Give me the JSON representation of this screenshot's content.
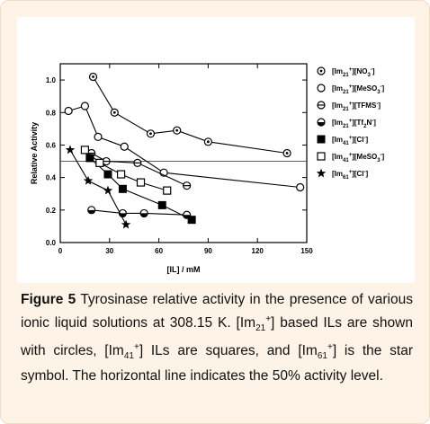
{
  "caption": {
    "label": "Figure 5",
    "text": "Tyrosinase relative activity in the presence of various ionic liquid solutions at 308.15 K. [Im21+] based ILs are shown with circles, [Im41+] ILs are squares, and [Im61+] is the star symbol. The horizontal line indicates the 50% activity level.",
    "parts": [
      {
        "t": " Tyrosinase relative activity in the presence of various ionic liquid solutions at 308.15 K. [Im"
      },
      {
        "t": "21",
        "sub": true
      },
      {
        "t": "+",
        "sup": true
      },
      {
        "t": "] based ILs are shown with circles, [Im"
      },
      {
        "t": "41",
        "sub": true
      },
      {
        "t": "+",
        "sup": true
      },
      {
        "t": "] ILs are squares, and [Im"
      },
      {
        "t": "61",
        "sub": true
      },
      {
        "t": "+",
        "sup": true
      },
      {
        "t": "] is the star symbol. The horizontal line indicates the 50% activity level."
      }
    ]
  },
  "chart_data": {
    "type": "line",
    "xlabel": "[IL] / mM",
    "ylabel": "Relative Activity",
    "xlim": [
      0,
      150
    ],
    "ylim": [
      0.0,
      1.1
    ],
    "xticks": [
      0,
      30,
      60,
      90,
      120,
      150
    ],
    "yticks": [
      0.0,
      0.2,
      0.4,
      0.6,
      0.8,
      1.0
    ],
    "ytick_labels": [
      "0.0",
      "0.2",
      "0.4",
      "0.6",
      "0.8",
      "1.0"
    ],
    "reference_line": {
      "y": 0.5,
      "style": "horizontal"
    },
    "grid": false,
    "legend_position": "right",
    "series": [
      {
        "name": "[Im21+][NO3-]",
        "label_parts": [
          [
            "[Im",
            ""
          ],
          [
            "21",
            "sub"
          ],
          [
            "+",
            "sup"
          ],
          [
            "][NO",
            ""
          ],
          [
            "3",
            "sub"
          ],
          [
            "-",
            "sup"
          ],
          [
            "]",
            ""
          ]
        ],
        "marker": "circle-dot",
        "x": [
          20,
          33,
          55,
          71,
          90,
          138
        ],
        "y": [
          1.02,
          0.8,
          0.67,
          0.69,
          0.62,
          0.55
        ]
      },
      {
        "name": "[Im21+][MeSO3-]",
        "label_parts": [
          [
            "[Im",
            ""
          ],
          [
            "21",
            "sub"
          ],
          [
            "+",
            "sup"
          ],
          [
            "][MeSO",
            ""
          ],
          [
            "3",
            "sub"
          ],
          [
            "-",
            "sup"
          ],
          [
            "]",
            ""
          ]
        ],
        "marker": "circle-open",
        "x": [
          5,
          15,
          23,
          39,
          63,
          146
        ],
        "y": [
          0.81,
          0.84,
          0.65,
          0.59,
          0.43,
          0.34
        ]
      },
      {
        "name": "[Im21+][TFMS-]",
        "label_parts": [
          [
            "[Im",
            ""
          ],
          [
            "21",
            "sub"
          ],
          [
            "+",
            "sup"
          ],
          [
            "][TFMS",
            ""
          ],
          [
            "-",
            "sup"
          ],
          [
            "]",
            ""
          ]
        ],
        "marker": "circle-cross",
        "x": [
          19,
          28,
          47,
          77
        ],
        "y": [
          0.55,
          0.5,
          0.49,
          0.35
        ]
      },
      {
        "name": "[Im21+][Tf2N-]",
        "label_parts": [
          [
            "[Im",
            ""
          ],
          [
            "21",
            "sub"
          ],
          [
            "+",
            "sup"
          ],
          [
            "][Tf",
            ""
          ],
          [
            "2",
            "sub"
          ],
          [
            "N",
            ""
          ],
          [
            "-",
            "sup"
          ],
          [
            "]",
            ""
          ]
        ],
        "marker": "circle-half",
        "x": [
          19,
          38,
          51,
          77
        ],
        "y": [
          0.2,
          0.18,
          0.18,
          0.17
        ]
      },
      {
        "name": "[Im41+][Cl-]",
        "label_parts": [
          [
            "[Im",
            ""
          ],
          [
            "41",
            "sub"
          ],
          [
            "+",
            "sup"
          ],
          [
            "][Cl",
            ""
          ],
          [
            "-",
            "sup"
          ],
          [
            "]",
            ""
          ]
        ],
        "marker": "square-filled",
        "x": [
          18,
          29,
          38,
          62,
          80
        ],
        "y": [
          0.52,
          0.42,
          0.33,
          0.23,
          0.14
        ]
      },
      {
        "name": "[Im41+][MeSO3-]",
        "label_parts": [
          [
            "[Im",
            ""
          ],
          [
            "41",
            "sub"
          ],
          [
            "+",
            "sup"
          ],
          [
            "][MeSO",
            ""
          ],
          [
            "3",
            "sub"
          ],
          [
            "-",
            "sup"
          ],
          [
            "]",
            ""
          ]
        ],
        "marker": "square-open",
        "x": [
          15,
          24,
          37,
          49,
          65
        ],
        "y": [
          0.57,
          0.49,
          0.42,
          0.37,
          0.32
        ]
      },
      {
        "name": "[Im61+][Cl-]",
        "label_parts": [
          [
            "[Im",
            ""
          ],
          [
            "61",
            "sub"
          ],
          [
            "+",
            "sup"
          ],
          [
            "][Cl",
            ""
          ],
          [
            "-",
            "sup"
          ],
          [
            "]",
            ""
          ]
        ],
        "marker": "star",
        "x": [
          6,
          17,
          29,
          40
        ],
        "y": [
          0.57,
          0.38,
          0.32,
          0.11
        ]
      }
    ]
  }
}
